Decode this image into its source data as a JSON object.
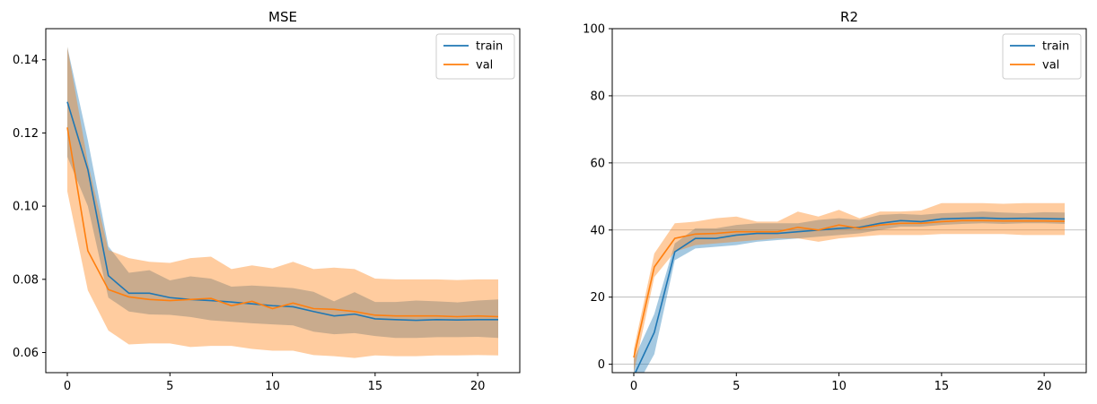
{
  "chart_data": [
    {
      "type": "line",
      "title": "MSE",
      "xlabel": "",
      "ylabel": "",
      "xlim": [
        -1.05,
        22.05
      ],
      "ylim": [
        0.0545,
        0.1485
      ],
      "xticks": [
        0,
        5,
        10,
        15,
        20
      ],
      "yticks": [
        0.06,
        0.08,
        0.1,
        0.12,
        0.14
      ],
      "ytick_labels": [
        "0.06",
        "0.08",
        "0.10",
        "0.12",
        "0.14"
      ],
      "grid": false,
      "legend_position": "top-right",
      "x": [
        0,
        1,
        2,
        3,
        4,
        5,
        6,
        7,
        8,
        9,
        10,
        11,
        12,
        13,
        14,
        15,
        16,
        17,
        18,
        19,
        20,
        21
      ],
      "series": [
        {
          "name": "train",
          "color": "#1f77b4",
          "band_color": "#1f77b4",
          "band_opacity": 0.4,
          "values": [
            0.1285,
            0.11,
            0.081,
            0.0762,
            0.0762,
            0.075,
            0.0745,
            0.0742,
            0.0738,
            0.0733,
            0.0728,
            0.0725,
            0.0712,
            0.07,
            0.0705,
            0.0692,
            0.069,
            0.0688,
            0.069,
            0.0689,
            0.069,
            0.069
          ],
          "lower": [
            0.1135,
            0.1,
            0.075,
            0.0712,
            0.0704,
            0.0703,
            0.0697,
            0.0688,
            0.0684,
            0.068,
            0.0677,
            0.0674,
            0.0657,
            0.065,
            0.0653,
            0.0645,
            0.064,
            0.064,
            0.0642,
            0.0642,
            0.0643,
            0.064
          ],
          "upper": [
            0.1435,
            0.118,
            0.089,
            0.0818,
            0.0825,
            0.0797,
            0.0808,
            0.0802,
            0.078,
            0.0783,
            0.078,
            0.0776,
            0.0766,
            0.074,
            0.0765,
            0.0738,
            0.0738,
            0.0742,
            0.074,
            0.0737,
            0.0742,
            0.0745
          ]
        },
        {
          "name": "val",
          "color": "#ff7f0e",
          "band_color": "#ff7f0e",
          "band_opacity": 0.4,
          "values": [
            0.1215,
            0.0878,
            0.0772,
            0.0752,
            0.0745,
            0.0742,
            0.0745,
            0.0748,
            0.0728,
            0.074,
            0.072,
            0.0735,
            0.072,
            0.0718,
            0.0712,
            0.0702,
            0.07,
            0.07,
            0.07,
            0.0698,
            0.07,
            0.0698
          ],
          "lower": [
            0.104,
            0.077,
            0.066,
            0.0622,
            0.0625,
            0.0625,
            0.0615,
            0.0618,
            0.0618,
            0.061,
            0.0605,
            0.0605,
            0.0593,
            0.059,
            0.0585,
            0.0592,
            0.059,
            0.059,
            0.0592,
            0.0592,
            0.0593,
            0.0592
          ],
          "upper": [
            0.1435,
            0.112,
            0.088,
            0.0858,
            0.0848,
            0.0845,
            0.0858,
            0.0862,
            0.0828,
            0.0838,
            0.083,
            0.0848,
            0.0828,
            0.0832,
            0.0828,
            0.0802,
            0.08,
            0.08,
            0.08,
            0.0798,
            0.08,
            0.08
          ]
        }
      ]
    },
    {
      "type": "line",
      "title": "R2",
      "xlabel": "",
      "ylabel": "",
      "xlim": [
        -1.05,
        22.05
      ],
      "ylim": [
        -2.5,
        100
      ],
      "xticks": [
        0,
        5,
        10,
        15,
        20
      ],
      "yticks": [
        0,
        20,
        40,
        60,
        80,
        100
      ],
      "ytick_labels": [
        "0",
        "20",
        "40",
        "60",
        "80",
        "100"
      ],
      "grid": true,
      "grid_axis": "y",
      "legend_position": "top-right",
      "x": [
        0,
        1,
        2,
        3,
        4,
        5,
        6,
        7,
        8,
        9,
        10,
        11,
        12,
        13,
        14,
        15,
        16,
        17,
        18,
        19,
        20,
        21
      ],
      "series": [
        {
          "name": "train",
          "color": "#1f77b4",
          "band_color": "#1f77b4",
          "band_opacity": 0.4,
          "values": [
            -3.5,
            9.5,
            33.5,
            37.5,
            37.5,
            38.5,
            39.0,
            39.0,
            39.5,
            40.0,
            40.5,
            40.8,
            42.0,
            42.8,
            42.5,
            43.3,
            43.5,
            43.6,
            43.4,
            43.5,
            43.4,
            43.3
          ],
          "lower": [
            -8.0,
            3.0,
            31.0,
            34.5,
            35.0,
            35.5,
            36.5,
            37.0,
            37.5,
            38.0,
            38.5,
            39.0,
            40.0,
            41.0,
            41.0,
            41.5,
            41.8,
            42.0,
            41.8,
            42.0,
            42.0,
            41.8
          ],
          "upper": [
            1.5,
            15.0,
            36.0,
            40.5,
            40.5,
            41.5,
            42.0,
            42.0,
            42.0,
            43.0,
            43.5,
            43.0,
            44.5,
            44.8,
            44.5,
            45.0,
            45.2,
            45.5,
            45.2,
            45.0,
            45.3,
            45.2
          ]
        },
        {
          "name": "val",
          "color": "#ff7f0e",
          "band_color": "#ff7f0e",
          "band_opacity": 0.4,
          "values": [
            2.0,
            29.0,
            37.5,
            38.8,
            39.0,
            39.5,
            39.5,
            39.5,
            40.8,
            40.0,
            41.5,
            40.5,
            41.5,
            42.0,
            42.0,
            42.5,
            42.8,
            42.8,
            42.7,
            42.7,
            42.7,
            42.6
          ],
          "lower": [
            -2.5,
            26.0,
            33.5,
            35.5,
            36.0,
            36.5,
            37.0,
            37.5,
            37.5,
            36.5,
            37.5,
            38.0,
            38.5,
            38.5,
            38.5,
            38.8,
            38.8,
            38.8,
            38.8,
            38.5,
            38.5,
            38.5
          ],
          "upper": [
            4.5,
            33.0,
            42.0,
            42.5,
            43.5,
            44.0,
            42.5,
            42.5,
            45.5,
            44.0,
            46.0,
            43.5,
            45.5,
            45.5,
            45.8,
            48.0,
            48.0,
            48.0,
            47.8,
            48.0,
            48.0,
            48.0
          ]
        }
      ]
    }
  ]
}
